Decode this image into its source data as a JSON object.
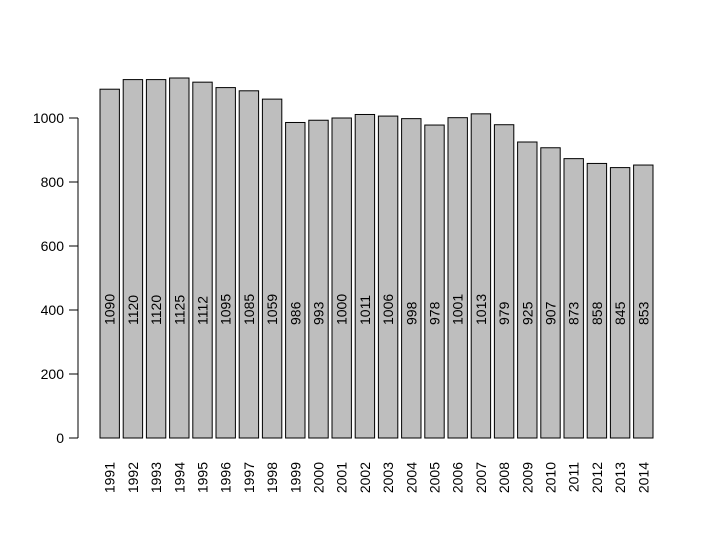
{
  "chart_data": {
    "type": "bar",
    "title": "",
    "xlabel": "",
    "ylabel": "",
    "categories": [
      "1991",
      "1992",
      "1993",
      "1994",
      "1995",
      "1996",
      "1997",
      "1998",
      "1999",
      "2000",
      "2001",
      "2002",
      "2003",
      "2004",
      "2005",
      "2006",
      "2007",
      "2008",
      "2009",
      "2010",
      "2011",
      "2012",
      "2013",
      "2014"
    ],
    "values": [
      1090,
      1120,
      1120,
      1125,
      1112,
      1095,
      1085,
      1059,
      986,
      993,
      1000,
      1011,
      1006,
      998,
      978,
      1001,
      1013,
      979,
      925,
      907,
      873,
      858,
      845,
      853
    ],
    "value_labels": [
      "1090",
      "1120",
      "1120",
      "1125",
      "1112",
      "1095",
      "1085",
      "1059",
      "986",
      "993",
      "1000",
      "1011",
      "1006",
      "998",
      "978",
      "1001",
      "1013",
      "979",
      "925",
      "907",
      "873",
      "858",
      "845",
      "853"
    ],
    "yticks": [
      0,
      200,
      400,
      600,
      800,
      1000
    ],
    "ytick_labels": [
      "0",
      "200",
      "400",
      "600",
      "800",
      "1000"
    ],
    "ylim": [
      0,
      1000
    ],
    "grid": false,
    "bar_color": "#bebebe",
    "bar_border_color": "#000000",
    "data_label_y_value": 400
  }
}
